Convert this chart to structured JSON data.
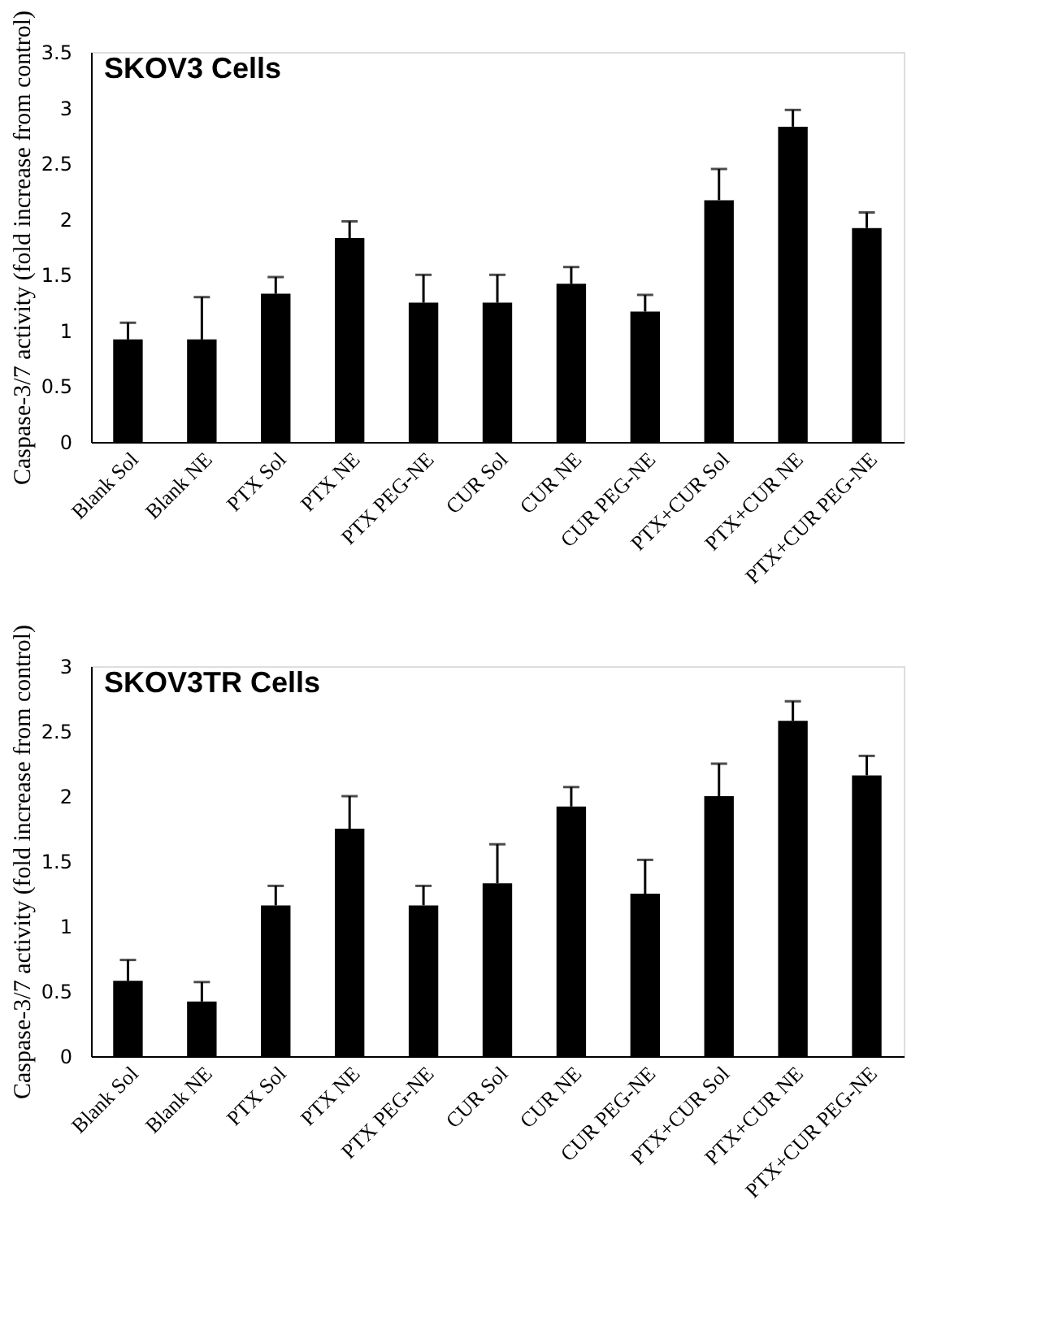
{
  "chart_data": [
    {
      "type": "bar",
      "title": "SKOV3 Cells",
      "ylabel": "Caspase-3/7 activity (fold increase from control)",
      "categories": [
        "Blank Sol",
        "Blank NE",
        "PTX Sol",
        "PTX NE",
        "PTX PEG-NE",
        "CUR Sol",
        "CUR NE",
        "CUR PEG-NE",
        "PTX+CUR Sol",
        "PTX+CUR NE",
        "PTX+CUR PEG-NE"
      ],
      "values": [
        0.92,
        0.92,
        1.33,
        1.83,
        1.25,
        1.25,
        1.42,
        1.17,
        2.17,
        2.83,
        1.92
      ],
      "errors": [
        [
          0.92,
          1.07
        ],
        [
          0.92,
          1.3
        ],
        [
          1.33,
          1.48
        ],
        [
          1.83,
          1.98
        ],
        [
          1.25,
          1.5
        ],
        [
          1.25,
          1.5
        ],
        [
          1.42,
          1.57
        ],
        [
          1.17,
          1.32
        ],
        [
          2.17,
          2.45
        ],
        [
          2.83,
          2.98
        ],
        [
          1.92,
          2.06
        ]
      ],
      "color": "#000000",
      "ylim": [
        0,
        3.5
      ],
      "yticks": [
        0,
        0.5,
        1,
        1.5,
        2,
        2.5,
        3,
        3.5
      ],
      "grid": false
    },
    {
      "type": "bar",
      "title": "SKOV3TR Cells",
      "ylabel": "Caspase-3/7 activity (fold increase from control)",
      "categories": [
        "Blank Sol",
        "Blank NE",
        "PTX Sol",
        "PTX NE",
        "PTX PEG-NE",
        "CUR Sol",
        "CUR NE",
        "CUR PEG-NE",
        "PTX+CUR Sol",
        "PTX+CUR NE",
        "PTX+CUR PEG-NE"
      ],
      "values": [
        0.58,
        0.42,
        1.16,
        1.75,
        1.16,
        1.33,
        1.92,
        1.25,
        2.0,
        2.58,
        2.16
      ],
      "errors": [
        [
          0.58,
          0.74
        ],
        [
          0.42,
          0.57
        ],
        [
          1.16,
          1.31
        ],
        [
          1.75,
          2.0
        ],
        [
          1.16,
          1.31
        ],
        [
          1.33,
          1.63
        ],
        [
          1.92,
          2.07
        ],
        [
          1.25,
          1.51
        ],
        [
          2.0,
          2.25
        ],
        [
          2.58,
          2.73
        ],
        [
          2.16,
          2.31
        ]
      ],
      "color": "#000000",
      "ylim": [
        0,
        3
      ],
      "yticks": [
        0,
        0.5,
        1,
        1.5,
        2,
        2.5,
        3
      ],
      "grid": false
    }
  ]
}
